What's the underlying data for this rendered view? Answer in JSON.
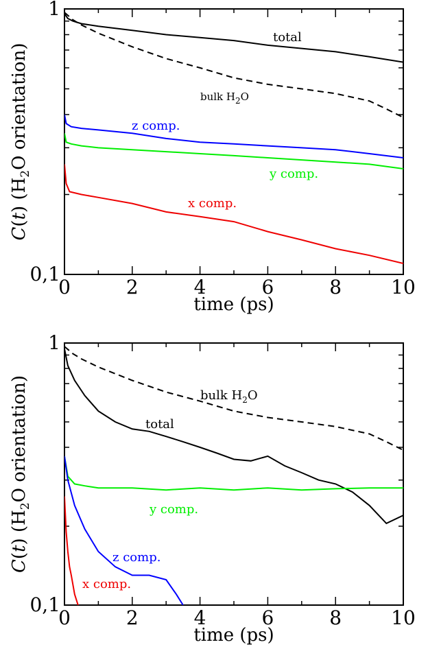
{
  "chart_data": [
    {
      "type": "line",
      "xlabel": "time (ps)",
      "ylabel": "C(t) (H2O orientation)",
      "ylabel_parts": {
        "italic": "C",
        "open": "(",
        "t": "t",
        "rest": ") (H",
        "sub": "2",
        "tail": "O orientation)"
      },
      "yscale": "log",
      "xlim": [
        0,
        10
      ],
      "ylim": [
        0.1,
        1
      ],
      "xticks": [
        "0",
        "2",
        "4",
        "6",
        "8",
        "10"
      ],
      "yticks": [
        "0,1",
        "1"
      ],
      "series": [
        {
          "name": "total",
          "color": "#000000",
          "dash": false,
          "x": [
            0,
            0.1,
            0.25,
            0.5,
            1,
            2,
            3,
            4,
            5,
            6,
            7,
            8,
            9,
            10
          ],
          "y": [
            0.96,
            0.92,
            0.9,
            0.88,
            0.86,
            0.83,
            0.8,
            0.78,
            0.76,
            0.73,
            0.71,
            0.69,
            0.66,
            0.63
          ]
        },
        {
          "name": "bulk H2O",
          "label_main": "bulk H",
          "label_sub": "2",
          "label_tail": "O",
          "color": "#000000",
          "dash": true,
          "x": [
            0,
            0.25,
            0.5,
            1,
            2,
            3,
            4,
            5,
            6,
            7,
            8,
            9,
            9.5,
            10
          ],
          "y": [
            0.97,
            0.91,
            0.87,
            0.81,
            0.72,
            0.65,
            0.6,
            0.55,
            0.52,
            0.5,
            0.48,
            0.45,
            0.42,
            0.39
          ]
        },
        {
          "name": "z comp.",
          "color": "#0000ff",
          "dash": false,
          "x": [
            0,
            0.05,
            0.2,
            0.5,
            1,
            2,
            3,
            4,
            5,
            6,
            7,
            8,
            9,
            10
          ],
          "y": [
            0.4,
            0.37,
            0.36,
            0.355,
            0.35,
            0.34,
            0.325,
            0.315,
            0.31,
            0.305,
            0.3,
            0.295,
            0.285,
            0.275
          ]
        },
        {
          "name": "y comp.",
          "color": "#00ee00",
          "dash": false,
          "x": [
            0,
            0.05,
            0.2,
            0.5,
            1,
            2,
            3,
            4,
            5,
            6,
            7,
            8,
            9,
            10
          ],
          "y": [
            0.34,
            0.315,
            0.31,
            0.305,
            0.3,
            0.295,
            0.29,
            0.285,
            0.28,
            0.275,
            0.27,
            0.265,
            0.26,
            0.25
          ]
        },
        {
          "name": "x comp.",
          "color": "#ee0000",
          "dash": false,
          "x": [
            0,
            0.05,
            0.15,
            0.5,
            1,
            2,
            3,
            4,
            5,
            6,
            7,
            8,
            9,
            10
          ],
          "y": [
            0.26,
            0.22,
            0.205,
            0.2,
            0.195,
            0.185,
            0.172,
            0.165,
            0.158,
            0.145,
            0.135,
            0.125,
            0.118,
            0.11
          ]
        }
      ]
    },
    {
      "type": "line",
      "xlabel": "time (ps)",
      "ylabel": "C(t) (H2O orientation)",
      "ylabel_parts": {
        "italic": "C",
        "open": "(",
        "t": "t",
        "rest": ") (H",
        "sub": "2",
        "tail": "O orientation)"
      },
      "yscale": "log",
      "xlim": [
        0,
        10
      ],
      "ylim": [
        0.1,
        1
      ],
      "xticks": [
        "0",
        "2",
        "4",
        "6",
        "8",
        "10"
      ],
      "yticks": [
        "0,1",
        "1"
      ],
      "series": [
        {
          "name": "bulk H2O",
          "label_main": "bulk H",
          "label_sub": "2",
          "label_tail": "O",
          "color": "#000000",
          "dash": true,
          "x": [
            0,
            0.25,
            0.5,
            1,
            2,
            3,
            4,
            5,
            6,
            7,
            8,
            9,
            9.5,
            10
          ],
          "y": [
            0.97,
            0.91,
            0.87,
            0.81,
            0.72,
            0.65,
            0.6,
            0.55,
            0.52,
            0.5,
            0.48,
            0.45,
            0.42,
            0.39
          ]
        },
        {
          "name": "total",
          "color": "#000000",
          "dash": false,
          "x": [
            0,
            0.1,
            0.3,
            0.6,
            1,
            1.5,
            2,
            2.5,
            3,
            3.5,
            4,
            4.5,
            5,
            5.5,
            6,
            6.5,
            7,
            7.5,
            8,
            8.5,
            9,
            9.5,
            10
          ],
          "y": [
            0.95,
            0.82,
            0.72,
            0.63,
            0.55,
            0.5,
            0.47,
            0.46,
            0.44,
            0.42,
            0.4,
            0.38,
            0.36,
            0.355,
            0.37,
            0.34,
            0.32,
            0.3,
            0.29,
            0.27,
            0.24,
            0.205,
            0.22
          ]
        },
        {
          "name": "y comp.",
          "color": "#00ee00",
          "dash": false,
          "x": [
            0,
            0.1,
            0.3,
            0.6,
            1,
            2,
            3,
            4,
            5,
            6,
            7,
            8,
            9,
            10
          ],
          "y": [
            0.37,
            0.31,
            0.29,
            0.285,
            0.28,
            0.28,
            0.275,
            0.28,
            0.275,
            0.28,
            0.275,
            0.278,
            0.28,
            0.28
          ]
        },
        {
          "name": "z comp.",
          "color": "#0000ff",
          "dash": false,
          "x": [
            0,
            0.1,
            0.3,
            0.6,
            1,
            1.5,
            2,
            2.5,
            3,
            3.3,
            3.5
          ],
          "y": [
            0.37,
            0.3,
            0.24,
            0.195,
            0.16,
            0.14,
            0.13,
            0.13,
            0.125,
            0.11,
            0.1
          ]
        },
        {
          "name": "x comp.",
          "color": "#ee0000",
          "dash": false,
          "x": [
            0,
            0.05,
            0.1,
            0.15,
            0.2,
            0.3,
            0.4
          ],
          "y": [
            0.26,
            0.19,
            0.16,
            0.14,
            0.13,
            0.11,
            0.1
          ]
        }
      ]
    }
  ]
}
